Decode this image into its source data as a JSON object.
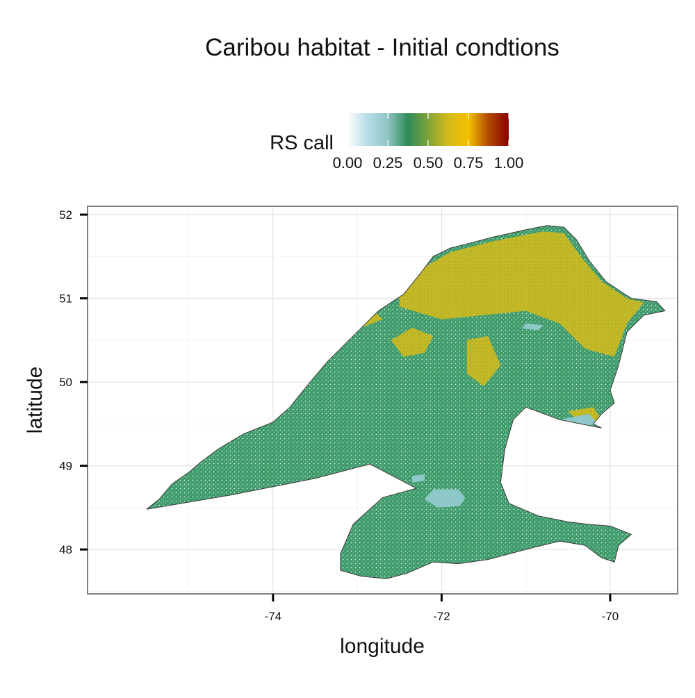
{
  "map": {
    "title": "Caribou habitat - Initial condtions",
    "xlabel": "longitude",
    "ylabel": "latitude",
    "x_ticks": [
      -74,
      -72,
      -70
    ],
    "y_ticks": [
      48,
      49,
      50,
      51,
      52
    ],
    "x_range": [
      -76.2,
      -69.2
    ],
    "y_range": [
      47.47,
      52.1
    ],
    "grid": true,
    "legend": {
      "title": "RS call",
      "position": "top",
      "ticks": [
        "0.00",
        "0.25",
        "0.50",
        "0.75",
        "1.00"
      ],
      "range": [
        0,
        1
      ],
      "colors": [
        "#ffffff",
        "#b7dce8",
        "#8ec4c4",
        "#2e8b57",
        "#7fa33a",
        "#d4bb1c",
        "#f4c000",
        "#b04a00",
        "#8b0000"
      ]
    },
    "fill_colors": {
      "boundary": "#3a3a3a",
      "main_green": "#3e9b6a",
      "light_blue": "#8ec8c8",
      "yellow": "#d4bb1c",
      "speckle": "#ffffff"
    },
    "region": {
      "outline_lonlat": [
        [
          -75.5,
          48.48
        ],
        [
          -75.35,
          48.6
        ],
        [
          -75.2,
          48.78
        ],
        [
          -75.0,
          48.92
        ],
        [
          -74.85,
          49.05
        ],
        [
          -74.65,
          49.2
        ],
        [
          -74.35,
          49.38
        ],
        [
          -74.0,
          49.52
        ],
        [
          -73.8,
          49.7
        ],
        [
          -73.6,
          49.95
        ],
        [
          -73.35,
          50.25
        ],
        [
          -73.05,
          50.55
        ],
        [
          -72.75,
          50.85
        ],
        [
          -72.45,
          51.05
        ],
        [
          -72.25,
          51.3
        ],
        [
          -72.1,
          51.5
        ],
        [
          -71.9,
          51.6
        ],
        [
          -71.7,
          51.65
        ],
        [
          -71.4,
          51.73
        ],
        [
          -71.0,
          51.82
        ],
        [
          -70.75,
          51.87
        ],
        [
          -70.55,
          51.85
        ],
        [
          -70.4,
          51.7
        ],
        [
          -70.25,
          51.45
        ],
        [
          -70.05,
          51.2
        ],
        [
          -69.75,
          51.0
        ],
        [
          -69.45,
          50.96
        ],
        [
          -69.35,
          50.85
        ],
        [
          -69.6,
          50.8
        ],
        [
          -69.8,
          50.6
        ],
        [
          -69.9,
          50.2
        ],
        [
          -70.0,
          49.9
        ],
        [
          -69.95,
          49.75
        ],
        [
          -70.1,
          49.62
        ],
        [
          -70.2,
          49.5
        ],
        [
          -70.1,
          49.45
        ],
        [
          -70.6,
          49.55
        ],
        [
          -71.0,
          49.7
        ],
        [
          -71.15,
          49.55
        ],
        [
          -71.25,
          49.2
        ],
        [
          -71.3,
          48.8
        ],
        [
          -71.2,
          48.55
        ],
        [
          -70.85,
          48.4
        ],
        [
          -70.5,
          48.33
        ],
        [
          -70.25,
          48.3
        ],
        [
          -70.0,
          48.28
        ],
        [
          -69.75,
          48.18
        ],
        [
          -69.9,
          48.05
        ],
        [
          -69.95,
          47.85
        ],
        [
          -70.1,
          47.9
        ],
        [
          -70.3,
          48.05
        ],
        [
          -70.6,
          48.1
        ],
        [
          -71.0,
          48.0
        ],
        [
          -71.45,
          47.88
        ],
        [
          -71.8,
          47.83
        ],
        [
          -72.1,
          47.85
        ],
        [
          -72.4,
          47.72
        ],
        [
          -72.65,
          47.65
        ],
        [
          -72.95,
          47.68
        ],
        [
          -73.2,
          47.75
        ],
        [
          -73.2,
          47.95
        ],
        [
          -73.05,
          48.3
        ],
        [
          -72.7,
          48.62
        ],
        [
          -72.3,
          48.73
        ],
        [
          -72.85,
          49.02
        ],
        [
          -73.5,
          48.85
        ],
        [
          -74.5,
          48.65
        ],
        [
          -75.5,
          48.48
        ]
      ],
      "yellow_zones_lonlat": [
        [
          [
            -72.5,
            51.2
          ],
          [
            -71.9,
            51.55
          ],
          [
            -71.4,
            51.68
          ],
          [
            -70.8,
            51.8
          ],
          [
            -70.55,
            51.78
          ],
          [
            -70.35,
            51.5
          ],
          [
            -70.1,
            51.2
          ],
          [
            -69.8,
            51.0
          ],
          [
            -69.6,
            50.95
          ],
          [
            -69.8,
            50.7
          ],
          [
            -69.95,
            50.3
          ],
          [
            -70.3,
            50.4
          ],
          [
            -70.6,
            50.7
          ],
          [
            -71.0,
            50.85
          ],
          [
            -71.5,
            50.8
          ],
          [
            -72.0,
            50.75
          ],
          [
            -72.5,
            50.9
          ]
        ],
        [
          [
            -72.6,
            50.5
          ],
          [
            -72.35,
            50.65
          ],
          [
            -72.1,
            50.55
          ],
          [
            -72.2,
            50.35
          ],
          [
            -72.45,
            50.3
          ]
        ],
        [
          [
            -71.7,
            50.5
          ],
          [
            -71.45,
            50.55
          ],
          [
            -71.3,
            50.2
          ],
          [
            -71.5,
            49.95
          ],
          [
            -71.7,
            50.1
          ]
        ],
        [
          [
            -73.1,
            50.8
          ],
          [
            -72.85,
            50.9
          ],
          [
            -72.7,
            50.75
          ],
          [
            -72.95,
            50.65
          ]
        ],
        [
          [
            -70.5,
            49.65
          ],
          [
            -70.2,
            49.7
          ],
          [
            -70.1,
            49.55
          ],
          [
            -70.35,
            49.5
          ]
        ]
      ],
      "light_blue_zones_lonlat": [
        [
          [
            -72.1,
            48.72
          ],
          [
            -71.8,
            48.72
          ],
          [
            -71.72,
            48.62
          ],
          [
            -71.78,
            48.52
          ],
          [
            -72.05,
            48.5
          ],
          [
            -72.2,
            48.6
          ]
        ],
        [
          [
            -70.6,
            49.55
          ],
          [
            -70.25,
            49.62
          ],
          [
            -70.15,
            49.5
          ],
          [
            -70.45,
            49.45
          ]
        ],
        [
          [
            -71.0,
            50.7
          ],
          [
            -70.8,
            50.68
          ],
          [
            -70.85,
            50.62
          ],
          [
            -71.05,
            50.64
          ]
        ],
        [
          [
            -72.35,
            48.88
          ],
          [
            -72.2,
            48.9
          ],
          [
            -72.2,
            48.82
          ],
          [
            -72.35,
            48.8
          ]
        ]
      ]
    }
  }
}
